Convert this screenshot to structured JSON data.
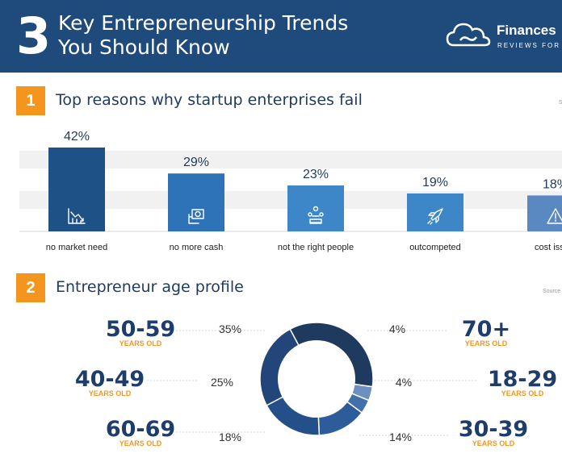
{
  "header": {
    "number": "3",
    "title_line1": "Key Entrepreneurship Trends",
    "title_line2": "You Should Know",
    "brand_name": "Finances",
    "brand_sub": "REVIEWS FOR"
  },
  "section1": {
    "badge": "1",
    "title": "Top reasons why startup enterprises fail",
    "source": "S"
  },
  "section2": {
    "badge": "2",
    "title": "Entrepreneur age profile",
    "source": "Source"
  },
  "colors": {
    "header_bg": "#1f4a7c",
    "accent_orange": "#f4961e",
    "bar_dark": "#1e5186",
    "bar_mid": "#2e72b8",
    "bar_light": "#3d86c8",
    "bar_grey": "#5a88c0"
  },
  "chart_data": [
    {
      "type": "bar",
      "categories": [
        "no market need",
        "no more cash",
        "not the right people",
        "outcompeted",
        "cost iss"
      ],
      "values": [
        42,
        29,
        23,
        19,
        18
      ],
      "labels": [
        "42%",
        "29%",
        "23%",
        "19%",
        "18%"
      ],
      "icons": [
        "declining-chart-icon",
        "money-icon",
        "team-icon",
        "rocket-icon",
        "warning-icon"
      ],
      "title": "",
      "xlabel": "",
      "ylabel": "",
      "ylim": [
        0,
        42
      ],
      "grid": true
    },
    {
      "type": "pie",
      "style": "donut",
      "slices": [
        {
          "range": "50-59",
          "unit": "YEARS OLD",
          "value": 35,
          "label": "35%",
          "color": "#1e3a5f"
        },
        {
          "range": "70+",
          "unit": "YEARS OLD",
          "value": 4,
          "label": "4%",
          "color": "#6e8fc2"
        },
        {
          "range": "18-29",
          "unit": "YEARS OLD",
          "value": 4,
          "label": "4%",
          "color": "#4170ab"
        },
        {
          "range": "30-39",
          "unit": "YEARS OLD",
          "value": 14,
          "label": "14%",
          "color": "#2c5c9a"
        },
        {
          "range": "60-69",
          "unit": "YEARS OLD",
          "value": 18,
          "label": "18%",
          "color": "#254f88"
        },
        {
          "range": "40-49",
          "unit": "YEARS OLD",
          "value": 25,
          "label": "25%",
          "color": "#22467a"
        }
      ]
    }
  ]
}
